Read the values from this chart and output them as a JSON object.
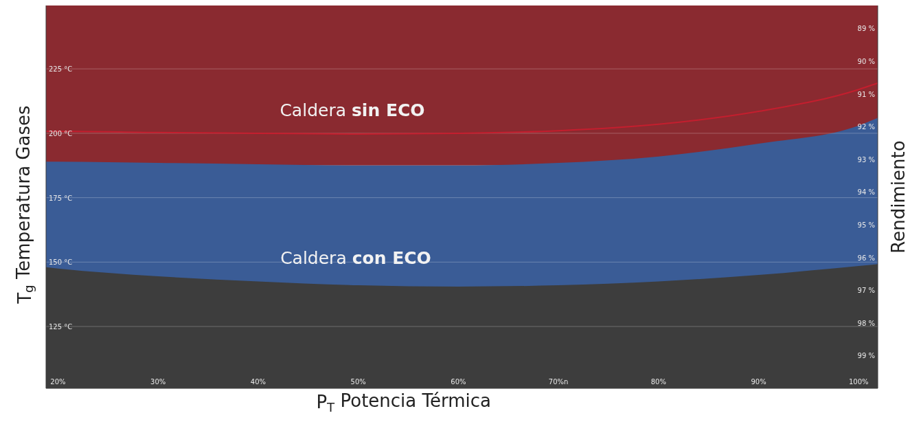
{
  "chart_data": {
    "type": "area",
    "xlabel": "P$_{T}$   Potencia Térmica",
    "ylabel": "T$_{g}$   Temperatura Gases",
    "y2label": "Rendimiento",
    "x": [
      18.8,
      20,
      30,
      40,
      50,
      60,
      70,
      80,
      90,
      100,
      101.9
    ],
    "series": [
      {
        "color": "#3a5c96",
        "values": [
          189,
          189,
          188.5,
          188,
          187.5,
          187.5,
          188.5,
          191,
          196,
          203,
          206
        ]
      },
      {
        "color": "#3d3d3d",
        "values": [
          148,
          147.5,
          144.5,
          142.5,
          141,
          140.5,
          141,
          142.5,
          145,
          148.5,
          149.2
        ]
      },
      {
        "type": "line",
        "color": "#c41e2e",
        "values": [
          200.8,
          200.8,
          200.3,
          200,
          199.7,
          200,
          201,
          203.5,
          208.5,
          217,
          219.5
        ]
      }
    ],
    "bands": [
      {
        "axis": "y",
        "from": 187.5,
        "to": 249.6,
        "color": "#8a2a30"
      }
    ],
    "annotations": [
      "Caldera sin ECO",
      "Caldera con ECO"
    ],
    "xlim": [
      18.8,
      101.9
    ],
    "xticks": [
      {
        "value": 20,
        "label": "20%"
      },
      {
        "value": 30,
        "label": "30%"
      },
      {
        "value": 40,
        "label": "40%"
      },
      {
        "value": 50,
        "label": "50%"
      },
      {
        "value": 60,
        "label": "60%"
      },
      {
        "value": 70,
        "label": "70%n"
      },
      {
        "value": 80,
        "label": "80%"
      },
      {
        "value": 90,
        "label": "90%"
      },
      {
        "value": 100,
        "label": "100%"
      }
    ],
    "ylim": [
      101,
      249.6
    ],
    "yticks": [
      {
        "value": 125,
        "label": "125 °C"
      },
      {
        "value": 150,
        "label": "150 °C"
      },
      {
        "value": 175,
        "label": "175 °C"
      },
      {
        "value": 200,
        "label": "200 °C"
      },
      {
        "value": 225,
        "label": "225 °C"
      }
    ],
    "y2lim": [
      100,
      88.3
    ],
    "y2ticks": [
      {
        "value": 89,
        "label": "89 %"
      },
      {
        "value": 90,
        "label": "90 %"
      },
      {
        "value": 91,
        "label": "91 %"
      },
      {
        "value": 92,
        "label": "92 %"
      },
      {
        "value": 93,
        "label": "93 %"
      },
      {
        "value": 94,
        "label": "94 %"
      },
      {
        "value": 95,
        "label": "95 %"
      },
      {
        "value": 96,
        "label": "96 %"
      },
      {
        "value": 97,
        "label": "97 %"
      },
      {
        "value": 98,
        "label": "98 %"
      },
      {
        "value": 99,
        "label": "99 %"
      }
    ],
    "grid": "y"
  }
}
